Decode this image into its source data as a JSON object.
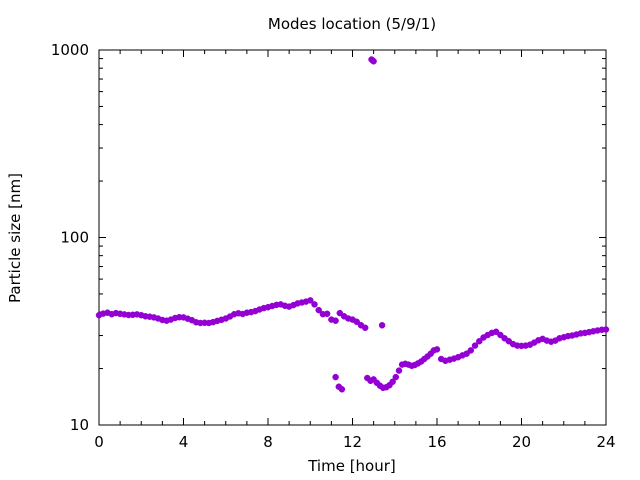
{
  "chart_data": {
    "type": "scatter",
    "title": "Modes location (5/9/1)",
    "xlabel": "Time [hour]",
    "ylabel": "Particle size [nm]",
    "xlim": [
      0,
      24
    ],
    "ylim": [
      10,
      1000
    ],
    "yscale": "log",
    "x_ticks": [
      0,
      4,
      8,
      12,
      16,
      20,
      24
    ],
    "x_tick_labels": [
      "0",
      "4",
      "8",
      "12",
      "16",
      "20",
      "24"
    ],
    "y_ticks": [
      10,
      100,
      1000
    ],
    "y_tick_labels": [
      "10",
      "100",
      "1000"
    ],
    "grid": false,
    "legend": "none",
    "marker_color": "#9400d3",
    "series": [
      {
        "x": [
          0.0,
          0.2,
          0.4,
          0.6,
          0.8,
          1.0,
          1.2,
          1.4,
          1.6,
          1.8,
          2.0,
          2.2,
          2.4,
          2.6,
          2.8,
          3.0,
          3.2,
          3.4,
          3.6,
          3.8,
          4.0,
          4.2,
          4.4,
          4.6,
          4.8,
          5.0,
          5.2,
          5.4,
          5.6,
          5.8,
          6.0,
          6.2,
          6.4,
          6.6,
          6.8,
          7.0,
          7.2,
          7.4,
          7.6,
          7.8,
          8.0,
          8.2,
          8.4,
          8.6,
          8.8,
          9.0,
          9.2,
          9.4,
          9.6,
          9.8,
          10.0,
          10.2,
          10.4,
          10.6,
          10.8,
          11.0,
          11.2,
          11.4,
          11.6,
          11.8,
          12.0,
          12.2,
          12.4,
          12.6,
          11.2,
          11.35,
          11.5,
          12.7,
          12.85,
          13.0,
          13.15,
          13.3,
          13.45,
          13.6,
          13.75,
          13.9,
          14.05,
          14.2,
          14.35,
          14.5,
          14.65,
          14.8,
          14.95,
          15.1,
          15.25,
          15.4,
          15.55,
          15.7,
          15.85,
          16.0,
          16.2,
          16.4,
          16.6,
          16.8,
          17.0,
          17.2,
          17.4,
          17.6,
          17.8,
          18.0,
          18.2,
          18.4,
          18.6,
          18.8,
          19.0,
          19.2,
          19.4,
          19.6,
          19.8,
          20.0,
          20.2,
          20.4,
          20.6,
          20.8,
          21.0,
          21.2,
          21.4,
          21.6,
          21.8,
          22.0,
          22.2,
          22.4,
          22.6,
          22.8,
          23.0,
          23.2,
          23.4,
          23.6,
          23.8,
          24.0,
          13.4,
          12.9,
          12.95,
          13.0
        ],
        "y": [
          38.5,
          39.3,
          39.7,
          39.0,
          39.5,
          39.2,
          38.9,
          38.6,
          38.7,
          38.9,
          38.5,
          38.0,
          37.8,
          37.5,
          37.0,
          36.3,
          36.0,
          36.5,
          37.2,
          37.6,
          37.5,
          36.9,
          36.2,
          35.3,
          35.0,
          35.1,
          35.0,
          35.4,
          35.9,
          36.4,
          37.0,
          37.9,
          39.0,
          39.4,
          39.1,
          39.7,
          40.0,
          40.5,
          41.3,
          42.0,
          42.5,
          43.1,
          43.7,
          44.0,
          43.2,
          42.8,
          43.6,
          44.5,
          45.0,
          45.5,
          46.2,
          44.0,
          41.0,
          39.0,
          39.2,
          36.5,
          36.0,
          39.5,
          38.0,
          37.0,
          36.5,
          35.5,
          34.0,
          33.0,
          18.0,
          16.0,
          15.5,
          17.8,
          17.2,
          17.5,
          16.8,
          16.2,
          15.8,
          15.9,
          16.3,
          17.0,
          18.0,
          19.5,
          21.0,
          21.2,
          21.0,
          20.7,
          20.9,
          21.3,
          21.8,
          22.5,
          23.2,
          24.0,
          25.0,
          25.3,
          22.5,
          22.0,
          22.3,
          22.6,
          23.0,
          23.5,
          24.0,
          25.0,
          26.5,
          28.0,
          29.3,
          30.2,
          31.0,
          31.4,
          30.2,
          29.0,
          28.0,
          27.0,
          26.5,
          26.4,
          26.5,
          26.8,
          27.5,
          28.3,
          28.8,
          28.2,
          27.8,
          28.2,
          29.0,
          29.4,
          29.8,
          30.0,
          30.4,
          30.8,
          31.0,
          31.3,
          31.6,
          31.9,
          32.2,
          32.3,
          34.0,
          890,
          880,
          870
        ]
      }
    ]
  }
}
